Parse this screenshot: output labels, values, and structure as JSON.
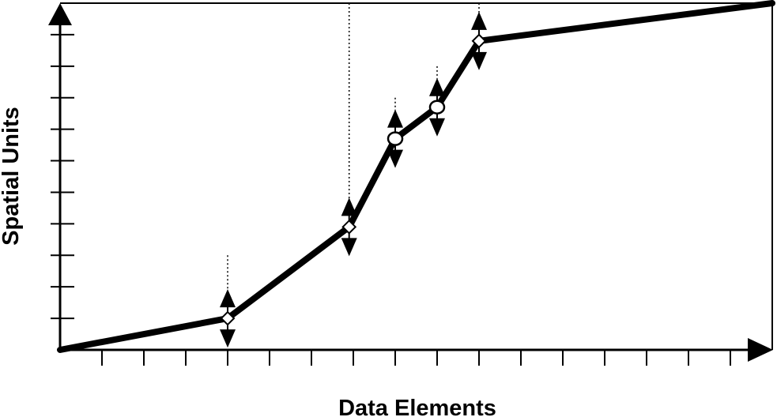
{
  "chart_data": {
    "type": "line",
    "title": "",
    "xlabel": "Data Elements",
    "ylabel": "Spatial Units",
    "xlim": [
      0,
      17
    ],
    "ylim": [
      0,
      11
    ],
    "grid": false,
    "legend": "none",
    "tick_labels_shown": false,
    "x_ticks": [
      1,
      2,
      3,
      4,
      5,
      6,
      7,
      8,
      9,
      10,
      11,
      12,
      13,
      14,
      15,
      16,
      17
    ],
    "y_ticks": [
      1,
      2,
      3,
      4,
      5,
      6,
      7,
      8,
      9,
      10,
      11
    ],
    "series": [
      {
        "values": [
          {
            "x": 0,
            "y": 0
          },
          {
            "x": 4,
            "y": 1
          },
          {
            "x": 6.9,
            "y": 3.9
          },
          {
            "x": 8,
            "y": 6.7
          },
          {
            "x": 9,
            "y": 7.7
          },
          {
            "x": 10,
            "y": 9.8
          },
          {
            "x": 17,
            "y": 11
          }
        ]
      }
    ],
    "markers": [
      {
        "x": 4,
        "y": 1,
        "shape": "diamond",
        "arrows": "up-down",
        "guide_top_y": 3
      },
      {
        "x": 6.9,
        "y": 3.9,
        "shape": "diamond",
        "arrows": "up-down",
        "guide_top_y": 11
      },
      {
        "x": 8,
        "y": 6.7,
        "shape": "circle",
        "arrows": "up-down",
        "guide_top_y": 8
      },
      {
        "x": 9,
        "y": 7.7,
        "shape": "circle",
        "arrows": "up-down",
        "guide_top_y": 9
      },
      {
        "x": 10,
        "y": 9.8,
        "shape": "diamond",
        "arrows": "up-down",
        "guide_top_y": 11
      }
    ],
    "colors": {
      "line": "#000000",
      "marker_fill": "#ffffff",
      "guide": "#000000"
    }
  }
}
